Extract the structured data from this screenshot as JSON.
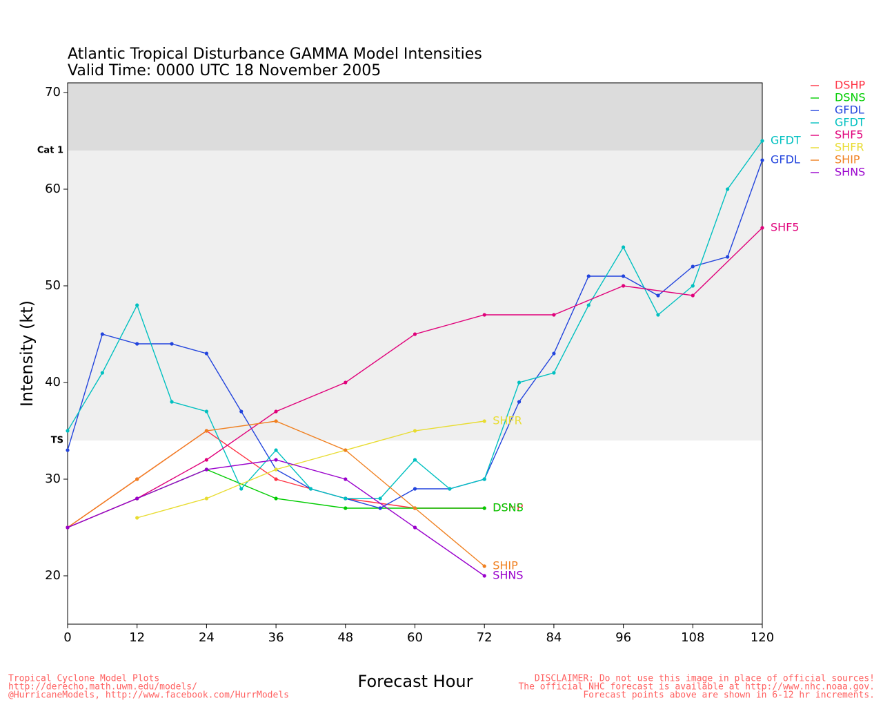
{
  "chart_data": {
    "type": "line",
    "title": "Atlantic Tropical Disturbance GAMMA Model Intensities",
    "subtitle": "Valid Time: 0000 UTC 18 November 2005",
    "x_label": "Forecast Hour",
    "y_label": "Intensity (kt)",
    "xlim": [
      0,
      120
    ],
    "xticks": [
      0,
      12,
      24,
      36,
      48,
      60,
      72,
      84,
      96,
      108,
      120
    ],
    "ylim": [
      15,
      71
    ],
    "yticks": [
      20,
      30,
      40,
      50,
      60,
      70
    ],
    "bands": [
      {
        "label": "Cat 1",
        "value": 64,
        "color": "#dcdcdc"
      },
      {
        "label": "TS",
        "value": 34,
        "color": "#efefef"
      }
    ],
    "series": [
      {
        "name": "DSHP",
        "color": "#ff3344",
        "x": [
          0,
          12,
          24,
          36,
          48,
          60,
          72
        ],
        "values": [
          25,
          30,
          35,
          30,
          28,
          27,
          27
        ]
      },
      {
        "name": "DSNS",
        "color": "#00cc00",
        "x": [
          0,
          12,
          24,
          36,
          48,
          60,
          72
        ],
        "values": [
          25,
          28,
          31,
          28,
          27,
          27,
          27
        ]
      },
      {
        "name": "GFDL",
        "color": "#2244dd",
        "x": [
          0,
          6,
          12,
          18,
          24,
          30,
          36,
          42,
          48,
          54,
          60,
          66,
          72,
          78,
          84,
          90,
          96,
          102,
          108,
          114,
          120
        ],
        "values": [
          33,
          45,
          44,
          44,
          43,
          37,
          31,
          29,
          28,
          27,
          29,
          29,
          30,
          38,
          43,
          51,
          51,
          49,
          52,
          53,
          63
        ]
      },
      {
        "name": "GFDT",
        "color": "#00c0c0",
        "x": [
          0,
          6,
          12,
          18,
          24,
          30,
          36,
          42,
          48,
          54,
          60,
          66,
          72,
          78,
          84,
          90,
          96,
          102,
          108,
          114,
          120
        ],
        "values": [
          35,
          41,
          48,
          38,
          37,
          29,
          33,
          29,
          28,
          28,
          32,
          29,
          30,
          40,
          41,
          48,
          54,
          47,
          50,
          60,
          65
        ]
      },
      {
        "name": "SHF5",
        "color": "#e0007a",
        "x": [
          0,
          12,
          24,
          36,
          48,
          60,
          72,
          84,
          96,
          108,
          120
        ],
        "values": [
          25,
          28,
          32,
          37,
          40,
          45,
          47,
          47,
          50,
          49,
          56
        ]
      },
      {
        "name": "SHFR",
        "color": "#e8dc30",
        "x": [
          12,
          24,
          36,
          48,
          60,
          72
        ],
        "values": [
          26,
          28,
          31,
          33,
          35,
          36
        ]
      },
      {
        "name": "SHIP",
        "color": "#f08020",
        "x": [
          0,
          12,
          24,
          36,
          48,
          60,
          72
        ],
        "values": [
          25,
          30,
          35,
          36,
          33,
          27,
          21
        ]
      },
      {
        "name": "SHNS",
        "color": "#9900cc",
        "x": [
          0,
          12,
          24,
          36,
          48,
          60,
          72
        ],
        "values": [
          25,
          28,
          31,
          32,
          30,
          25,
          20
        ]
      }
    ],
    "footer_left": [
      "Tropical Cyclone Model Plots",
      "http://derecho.math.uwm.edu/models/",
      "@HurricaneModels, http://www.facebook.com/HurrModels"
    ],
    "footer_right": [
      "DISCLAIMER: Do not use this image in place of official sources!",
      "The official NHC forecast is available at http://www.nhc.noaa.gov.",
      "Forecast points above are shown in 6-12 hr increments."
    ]
  }
}
